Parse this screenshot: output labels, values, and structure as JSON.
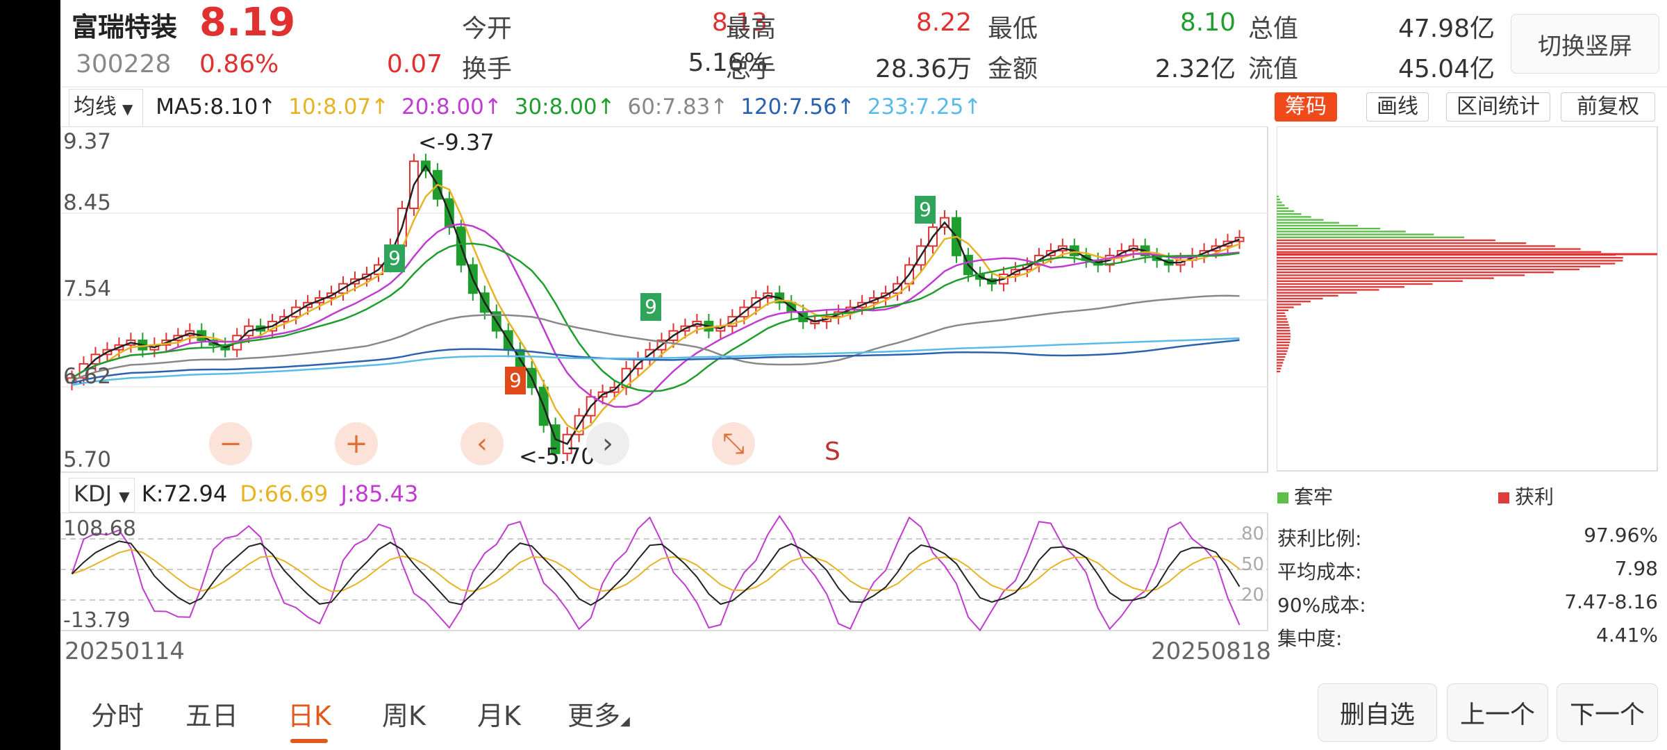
{
  "header": {
    "name": "富瑞特装",
    "price": "8.19",
    "code": "300228",
    "change_pct": "0.86%",
    "change": "0.07",
    "stats": [
      {
        "label": "今开",
        "value": "8.13",
        "color": "#e03030"
      },
      {
        "label": "最高",
        "value": "8.22",
        "color": "#e03030"
      },
      {
        "label": "最低",
        "value": "8.10",
        "color": "#1f9e2e"
      },
      {
        "label": "总值",
        "value": "47.98亿",
        "color": "#333333"
      },
      {
        "label": "换手",
        "value": "5.16%",
        "color": "#333333"
      },
      {
        "label": "总手",
        "value": "28.36万",
        "color": "#333333"
      },
      {
        "label": "金额",
        "value": "2.32亿",
        "color": "#333333"
      },
      {
        "label": "流值",
        "value": "45.04亿",
        "color": "#333333"
      }
    ],
    "orientation_button": "切换竖屏"
  },
  "ma_bar": {
    "selector": "均线",
    "items": [
      {
        "text": "MA5:8.10↑",
        "color": "#222222"
      },
      {
        "text": "10:8.07↑",
        "color": "#e6b325"
      },
      {
        "text": "20:8.00↑",
        "color": "#c03bd0"
      },
      {
        "text": "30:8.00↑",
        "color": "#1f9e2e"
      },
      {
        "text": "60:7.83↑",
        "color": "#888888"
      },
      {
        "text": "120:7.56↑",
        "color": "#2a62b0"
      },
      {
        "text": "233:7.25↑",
        "color": "#5bbbe8"
      }
    ]
  },
  "toolbar": {
    "chips": "筹码",
    "draw": "画线",
    "range_stats": "区间统计",
    "adjust": "前复权"
  },
  "price_axis": [
    "9.37",
    "8.45",
    "7.54",
    "6.62",
    "5.70"
  ],
  "annotations": {
    "high": "<-9.37",
    "low": "<-5.70",
    "signal": "S",
    "td_up_9": "9"
  },
  "kdj": {
    "selector": "KDJ",
    "k": "K:72.94",
    "d": "D:66.69",
    "j": "J:85.43",
    "axis_top": "108.68",
    "axis_bottom": "-13.79",
    "ref_80": "80",
    "ref_50": "50",
    "ref_20": "20"
  },
  "dates": {
    "start": "20250114",
    "end": "20250818"
  },
  "chips": {
    "legend_trapped": "套牢",
    "legend_profit": "获利",
    "stats": [
      {
        "label": "获利比例:",
        "value": "97.96%"
      },
      {
        "label": "平均成本:",
        "value": "7.98"
      },
      {
        "label": "90%成本:",
        "value": "7.47-8.16"
      },
      {
        "label": "集中度:",
        "value": "4.41%"
      }
    ]
  },
  "tabs": [
    "分时",
    "五日",
    "日K",
    "周K",
    "月K",
    "更多"
  ],
  "buttons": {
    "remove_watchlist": "删自选",
    "prev": "上一个",
    "next": "下一个"
  },
  "zoom": {
    "minus": "−",
    "plus": "+",
    "left": "‹",
    "right": "›",
    "shrink": "⤡"
  },
  "chart_data": {
    "type": "candlestick",
    "ylim": [
      5.7,
      9.37
    ],
    "series_close_sampled": [
      6.7,
      6.85,
      6.95,
      7.0,
      7.05,
      7.1,
      7.0,
      7.05,
      7.1,
      7.15,
      7.2,
      7.1,
      7.05,
      7.0,
      7.15,
      7.25,
      7.2,
      7.3,
      7.35,
      7.45,
      7.5,
      7.55,
      7.6,
      7.7,
      7.75,
      7.8,
      7.9,
      8.1,
      8.5,
      9.0,
      8.9,
      8.6,
      8.3,
      7.9,
      7.6,
      7.4,
      7.2,
      7.0,
      6.8,
      6.6,
      6.2,
      5.9,
      6.1,
      6.3,
      6.5,
      6.55,
      6.6,
      6.8,
      6.9,
      7.0,
      7.1,
      7.2,
      7.25,
      7.3,
      7.2,
      7.25,
      7.35,
      7.45,
      7.55,
      7.6,
      7.5,
      7.4,
      7.3,
      7.3,
      7.35,
      7.4,
      7.45,
      7.5,
      7.55,
      7.6,
      7.7,
      7.9,
      8.1,
      8.3,
      8.4,
      8.0,
      7.8,
      7.75,
      7.7,
      7.8,
      7.85,
      7.9,
      8.0,
      8.05,
      8.1,
      8.0,
      7.95,
      7.9,
      8.0,
      8.05,
      8.1,
      8.0,
      7.95,
      7.9,
      7.95,
      8.0,
      8.05,
      8.1,
      8.15,
      8.19
    ]
  }
}
